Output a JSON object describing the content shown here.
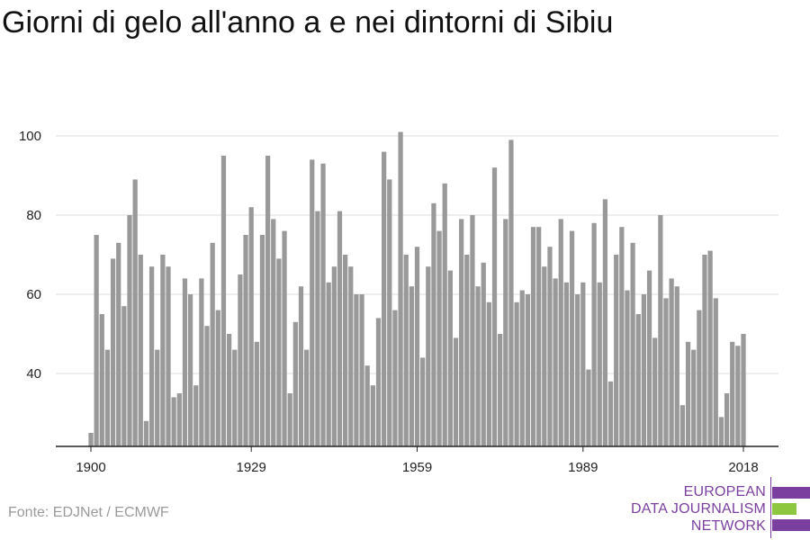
{
  "title": "Giorni di gelo all'anno a e nei dintorni di Sibiu",
  "source": "Fonte: EDJNet / ECMWF",
  "logo": {
    "line1": "EUROPEAN",
    "line2": "DATA JOURNALISM",
    "line3": "NETWORK"
  },
  "colors": {
    "bar": "#999999",
    "grid": "#dddddd",
    "axis": "#222222",
    "logo_purple": "#7b3fa0",
    "logo_green": "#8dc63f"
  },
  "chart_data": {
    "type": "bar",
    "title": "Giorni di gelo all'anno a e nei dintorni di Sibiu",
    "xlabel": "",
    "ylabel": "",
    "x_ticks": [
      1900,
      1929,
      1959,
      1989,
      2018
    ],
    "y_ticks": [
      40,
      60,
      80,
      100
    ],
    "ylim": [
      22,
      102
    ],
    "grid": true,
    "years": [
      1900,
      1901,
      1902,
      1903,
      1904,
      1905,
      1906,
      1907,
      1908,
      1909,
      1910,
      1911,
      1912,
      1913,
      1914,
      1915,
      1916,
      1917,
      1918,
      1919,
      1920,
      1921,
      1922,
      1923,
      1924,
      1925,
      1926,
      1927,
      1928,
      1929,
      1930,
      1931,
      1932,
      1933,
      1934,
      1935,
      1936,
      1937,
      1938,
      1939,
      1940,
      1941,
      1942,
      1943,
      1944,
      1945,
      1946,
      1947,
      1948,
      1949,
      1950,
      1951,
      1952,
      1953,
      1954,
      1955,
      1956,
      1957,
      1958,
      1959,
      1960,
      1961,
      1962,
      1963,
      1964,
      1965,
      1966,
      1967,
      1968,
      1969,
      1970,
      1971,
      1972,
      1973,
      1974,
      1975,
      1976,
      1977,
      1978,
      1979,
      1980,
      1981,
      1982,
      1983,
      1984,
      1985,
      1986,
      1987,
      1988,
      1989,
      1990,
      1991,
      1992,
      1993,
      1994,
      1995,
      1996,
      1997,
      1998,
      1999,
      2000,
      2001,
      2002,
      2003,
      2004,
      2005,
      2006,
      2007,
      2008,
      2009,
      2010,
      2011,
      2012,
      2013,
      2014,
      2015,
      2016,
      2017,
      2018
    ],
    "values": [
      25,
      75,
      55,
      46,
      69,
      73,
      57,
      80,
      89,
      70,
      28,
      67,
      46,
      70,
      67,
      34,
      35,
      64,
      60,
      37,
      64,
      52,
      73,
      56,
      95,
      50,
      46,
      65,
      75,
      82,
      48,
      75,
      95,
      79,
      69,
      76,
      35,
      53,
      62,
      46,
      94,
      81,
      93,
      63,
      67,
      81,
      70,
      67,
      60,
      60,
      42,
      37,
      54,
      96,
      89,
      56,
      101,
      70,
      62,
      72,
      44,
      67,
      83,
      76,
      88,
      66,
      49,
      79,
      70,
      80,
      62,
      68,
      58,
      92,
      50,
      79,
      99,
      58,
      61,
      60,
      77,
      77,
      67,
      72,
      64,
      79,
      63,
      76,
      60,
      63,
      41,
      78,
      63,
      84,
      38,
      70,
      77,
      61,
      73,
      55,
      60,
      66,
      49,
      80,
      59,
      64,
      62,
      32,
      48,
      46,
      56,
      70,
      71,
      59,
      29,
      35,
      48,
      47,
      50
    ]
  }
}
